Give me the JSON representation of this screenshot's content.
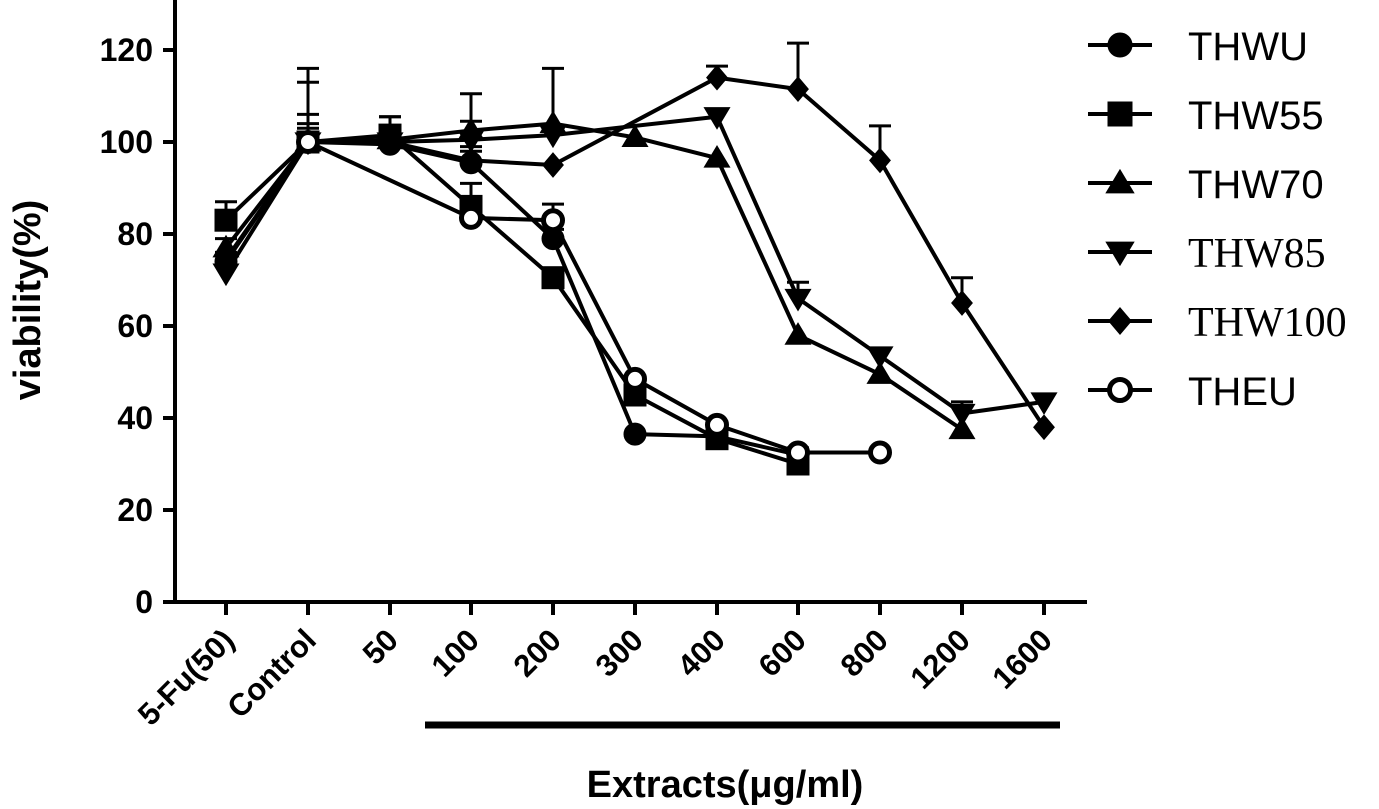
{
  "chart_data": {
    "type": "line",
    "title": "",
    "xlabel": "Extracts(μg/ml)",
    "ylabel": "viability(%)",
    "ylim": [
      0,
      130
    ],
    "yticks": [
      0,
      20,
      40,
      60,
      80,
      100,
      120
    ],
    "categories": [
      "5-Fu(50)",
      "Control",
      "50",
      "100",
      "200",
      "300",
      "400",
      "600",
      "800",
      "1200",
      "1600"
    ],
    "grid": false,
    "legend_position": "right",
    "series": [
      {
        "name": "THWU",
        "marker": "circle",
        "filled": true,
        "values": [
          74,
          100,
          99.5,
          95.5,
          79,
          36.5,
          36,
          32,
          null,
          null,
          null
        ],
        "errors": [
          2,
          6,
          0,
          2.5,
          2,
          0,
          2,
          1.5,
          null,
          null,
          null
        ]
      },
      {
        "name": "THW55",
        "marker": "square",
        "filled": true,
        "values": [
          83,
          100,
          101.5,
          86,
          70.5,
          45,
          35.5,
          30,
          null,
          null,
          null
        ],
        "errors": [
          4,
          13,
          4,
          5,
          0,
          3,
          2,
          0,
          null,
          null,
          null
        ]
      },
      {
        "name": "THW70",
        "marker": "triangle-up",
        "filled": true,
        "values": [
          77,
          100,
          100.5,
          102.5,
          104,
          101,
          96.5,
          58,
          49.5,
          37.5,
          null
        ],
        "errors": [
          2,
          16,
          5,
          8,
          12,
          0,
          0,
          0,
          0,
          0,
          null
        ]
      },
      {
        "name": "THW85",
        "marker": "triangle-down",
        "filled": true,
        "values": [
          71.5,
          100,
          100,
          100.5,
          101.5,
          null,
          105.5,
          66,
          53.5,
          41,
          43.5
        ],
        "errors": [
          0,
          3,
          3,
          4,
          0,
          null,
          0,
          3.5,
          0,
          2.5,
          0
        ]
      },
      {
        "name": "THW100",
        "marker": "diamond",
        "filled": true,
        "values": [
          74.5,
          100,
          100,
          96,
          95,
          null,
          114,
          111.5,
          96,
          65,
          38
        ],
        "errors": [
          0,
          4,
          0,
          3,
          0,
          null,
          2.5,
          10,
          7.5,
          5.5,
          0
        ]
      },
      {
        "name": "THEU",
        "marker": "circle",
        "filled": false,
        "values": [
          null,
          100,
          null,
          83.5,
          83,
          48.5,
          38.5,
          32.5,
          32.5,
          null,
          null
        ],
        "errors": [
          null,
          2,
          null,
          0,
          3.5,
          0,
          0,
          0,
          0,
          null,
          null
        ]
      }
    ]
  }
}
